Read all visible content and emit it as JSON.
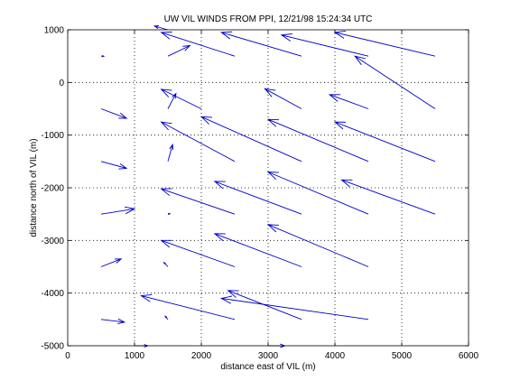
{
  "chart_data": {
    "type": "quiver",
    "title": "UW VIL WINDS FROM PPI,  12/21/98 15:24:34 UTC",
    "xlabel": "distance east of VIL (m)",
    "ylabel": "distance north of VIL (m)",
    "xlim": [
      0,
      6000
    ],
    "ylim": [
      -5000,
      1000
    ],
    "xticks": [
      0,
      1000,
      2000,
      3000,
      4000,
      5000,
      6000
    ],
    "yticks": [
      1000,
      0,
      -1000,
      -2000,
      -3000,
      -4000,
      -5000
    ],
    "grid": true,
    "vector_color": "#0000c8",
    "vectors": [
      {
        "x": 1500,
        "y": 1000,
        "u": -200,
        "v": 70
      },
      {
        "x": 2500,
        "y": 500,
        "u": -1100,
        "v": 450
      },
      {
        "x": 3500,
        "y": 500,
        "u": -1200,
        "v": 450
      },
      {
        "x": 4500,
        "y": 500,
        "u": -1300,
        "v": 400
      },
      {
        "x": 5500,
        "y": 500,
        "u": -1500,
        "v": 450
      },
      {
        "x": 500,
        "y": 500,
        "u": 40,
        "v": 0
      },
      {
        "x": 1500,
        "y": 500,
        "u": 330,
        "v": 200
      },
      {
        "x": 2000,
        "y": -500,
        "u": -600,
        "v": 370
      },
      {
        "x": 3500,
        "y": -500,
        "u": -550,
        "v": 380
      },
      {
        "x": 4500,
        "y": -500,
        "u": -580,
        "v": 270
      },
      {
        "x": 5500,
        "y": -500,
        "u": -1200,
        "v": 1000
      },
      {
        "x": 500,
        "y": -500,
        "u": 380,
        "v": -180
      },
      {
        "x": 1500,
        "y": -500,
        "u": 120,
        "v": 290
      },
      {
        "x": 2500,
        "y": -1500,
        "u": -1100,
        "v": 750
      },
      {
        "x": 3500,
        "y": -1500,
        "u": -1500,
        "v": 850
      },
      {
        "x": 4500,
        "y": -1500,
        "u": -1500,
        "v": 800
      },
      {
        "x": 5500,
        "y": -1500,
        "u": -1500,
        "v": 750
      },
      {
        "x": 500,
        "y": -1500,
        "u": 380,
        "v": -130
      },
      {
        "x": 1500,
        "y": -1500,
        "u": 70,
        "v": 320
      },
      {
        "x": 2500,
        "y": -2500,
        "u": -1100,
        "v": 480
      },
      {
        "x": 3500,
        "y": -2500,
        "u": -1300,
        "v": 620
      },
      {
        "x": 4500,
        "y": -2500,
        "u": -1500,
        "v": 800
      },
      {
        "x": 5500,
        "y": -2500,
        "u": -1400,
        "v": 650
      },
      {
        "x": 500,
        "y": -2500,
        "u": 500,
        "v": 100
      },
      {
        "x": 1500,
        "y": -2500,
        "u": 30,
        "v": 10
      },
      {
        "x": 2500,
        "y": -3500,
        "u": -1100,
        "v": 500
      },
      {
        "x": 3500,
        "y": -3500,
        "u": -1300,
        "v": 630
      },
      {
        "x": 4500,
        "y": -3500,
        "u": -1500,
        "v": 800
      },
      {
        "x": 500,
        "y": -3500,
        "u": 300,
        "v": 150
      },
      {
        "x": 1500,
        "y": -3500,
        "u": -60,
        "v": 80
      },
      {
        "x": 2500,
        "y": -4500,
        "u": -1400,
        "v": 450
      },
      {
        "x": 3500,
        "y": -4500,
        "u": -1100,
        "v": 550
      },
      {
        "x": 4500,
        "y": -4500,
        "u": -2200,
        "v": 400
      },
      {
        "x": 500,
        "y": -4500,
        "u": 350,
        "v": -50
      },
      {
        "x": 1500,
        "y": -4500,
        "u": -40,
        "v": 60
      },
      {
        "x": 1000,
        "y": -5000,
        "u": 200,
        "v": 0
      },
      {
        "x": 3000,
        "y": -5000,
        "u": 250,
        "v": 0
      }
    ]
  }
}
